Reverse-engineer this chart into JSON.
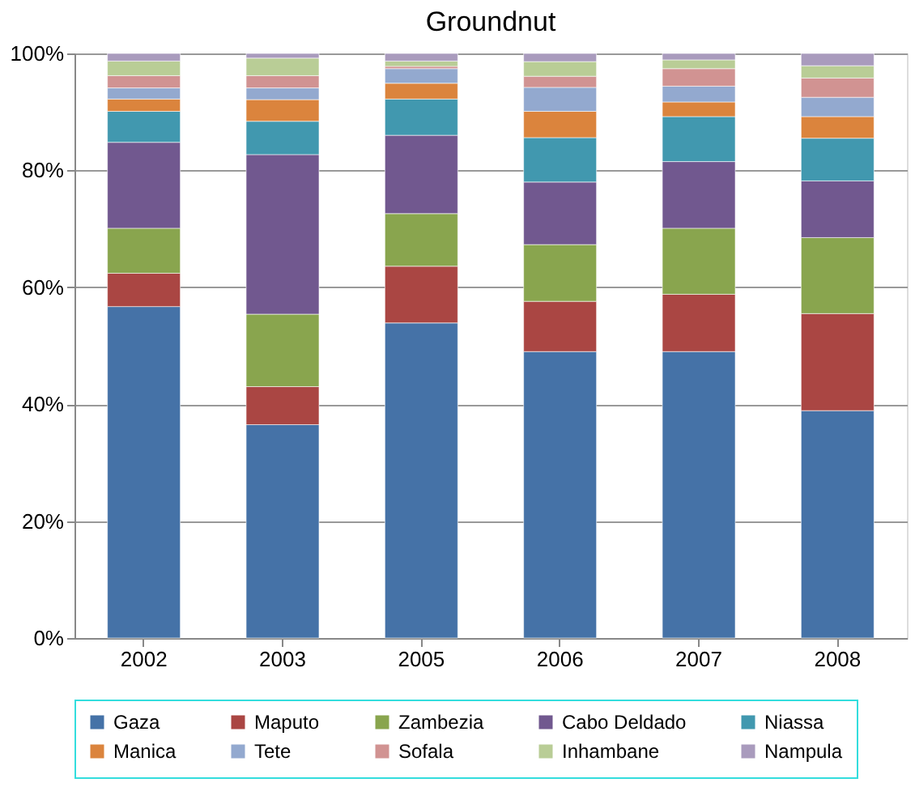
{
  "chart_data": {
    "type": "bar",
    "title": "Groundnut",
    "stacked": true,
    "categories": [
      "2002",
      "2003",
      "2005",
      "2006",
      "2007",
      "2008"
    ],
    "series": [
      {
        "name": "Gaza",
        "color": "#4572a7",
        "values": [
          56.7,
          36.5,
          53.9,
          49,
          49,
          38.9
        ]
      },
      {
        "name": "Maputo",
        "color": "#aa4643",
        "values": [
          5.7,
          6.5,
          9.7,
          8.6,
          9.8,
          16.6
        ]
      },
      {
        "name": "Zambezia",
        "color": "#89a54e",
        "values": [
          7.7,
          12.4,
          9,
          9.7,
          11.3,
          13
        ]
      },
      {
        "name": "Cabo Deldado",
        "color": "#71588f",
        "values": [
          14.7,
          27.3,
          13.4,
          10.7,
          11.4,
          9.7
        ]
      },
      {
        "name": "Niassa",
        "color": "#4198af",
        "values": [
          5.3,
          5.7,
          6.2,
          7.6,
          7.7,
          7.3
        ]
      },
      {
        "name": "Manica",
        "color": "#db843d",
        "values": [
          2.1,
          3.7,
          2.7,
          4.5,
          2.5,
          3.7
        ]
      },
      {
        "name": "Tete",
        "color": "#93a9cf",
        "values": [
          1.9,
          2,
          2.5,
          4.1,
          2.7,
          3.3
        ]
      },
      {
        "name": "Sofala",
        "color": "#d19392",
        "values": [
          2.1,
          2.1,
          0.4,
          1.9,
          3,
          3.3
        ]
      },
      {
        "name": "Inhambane",
        "color": "#b9cd96",
        "values": [
          2.5,
          3,
          0.9,
          2.5,
          1.5,
          2.1
        ]
      },
      {
        "name": "Nampula",
        "color": "#a99bbd",
        "values": [
          1.3,
          0.8,
          1.3,
          1.4,
          1.1,
          2.1
        ]
      }
    ],
    "ylim": [
      0,
      100
    ],
    "yticks": [
      {
        "value": 0,
        "label": "0%"
      },
      {
        "value": 20,
        "label": "20%"
      },
      {
        "value": 40,
        "label": "40%"
      },
      {
        "value": 60,
        "label": "60%"
      },
      {
        "value": 80,
        "label": "80%"
      },
      {
        "value": 100,
        "label": "100%"
      }
    ],
    "grid": "y",
    "legend": "bottom"
  }
}
